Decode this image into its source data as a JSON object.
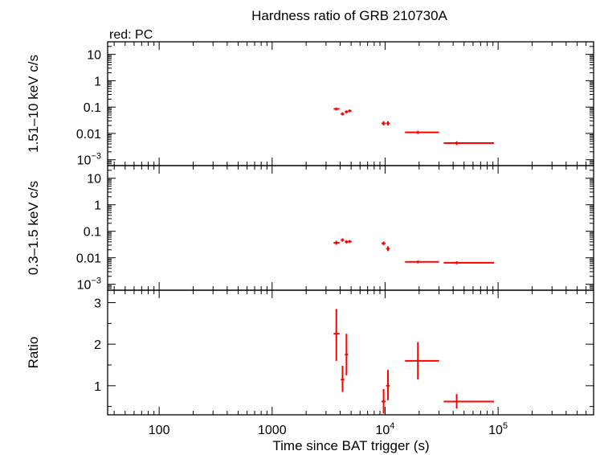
{
  "title": "Hardness ratio of GRB 210730A",
  "legend": "red: PC",
  "colors": {
    "data": "#ff0000",
    "axes": "#000000",
    "background": "#ffffff"
  },
  "chart_data": {
    "type": "scatter",
    "x_scale": "log",
    "xlim": [
      35,
      700000
    ],
    "xlabel": "Time since BAT trigger (s)",
    "x_ticks": [
      {
        "value": 100,
        "label": "100"
      },
      {
        "value": 1000,
        "label": "1000"
      },
      {
        "value": 10000,
        "base": "10",
        "exp": "4"
      },
      {
        "value": 100000,
        "base": "10",
        "exp": "5"
      }
    ],
    "panels": [
      {
        "ylabel": "1.51–10 keV c/s",
        "y_scale": "log",
        "ylim": [
          0.0006,
          30
        ],
        "y_ticks": [
          {
            "value": 10,
            "label": "10"
          },
          {
            "value": 1,
            "label": "1"
          },
          {
            "value": 0.1,
            "label": "0.1"
          },
          {
            "value": 0.01,
            "label": "0.01"
          },
          {
            "value": 0.001,
            "base": "10",
            "exp": "−3"
          }
        ],
        "points": [
          {
            "x": 3700,
            "xlo": 3500,
            "xhi": 3950,
            "y": 0.085,
            "ylo": 0.075,
            "yhi": 0.095
          },
          {
            "x": 4200,
            "xlo": 4050,
            "xhi": 4350,
            "y": 0.055,
            "ylo": 0.048,
            "yhi": 0.063
          },
          {
            "x": 4550,
            "xlo": 4400,
            "xhi": 4700,
            "y": 0.066,
            "ylo": 0.058,
            "yhi": 0.075
          },
          {
            "x": 4850,
            "xlo": 4700,
            "xhi": 5050,
            "y": 0.072,
            "ylo": 0.064,
            "yhi": 0.081
          },
          {
            "x": 9700,
            "xlo": 9300,
            "xhi": 10100,
            "y": 0.024,
            "ylo": 0.02,
            "yhi": 0.029
          },
          {
            "x": 10600,
            "xlo": 10200,
            "xhi": 11000,
            "y": 0.024,
            "ylo": 0.02,
            "yhi": 0.029
          },
          {
            "x": 19500,
            "xlo": 15000,
            "xhi": 30000,
            "y": 0.011,
            "ylo": 0.0095,
            "yhi": 0.0125
          },
          {
            "x": 43000,
            "xlo": 33000,
            "xhi": 92000,
            "y": 0.0043,
            "ylo": 0.0036,
            "yhi": 0.005
          }
        ]
      },
      {
        "ylabel": "0.3–1.5 keV c/s",
        "y_scale": "log",
        "ylim": [
          0.0006,
          30
        ],
        "y_ticks": [
          {
            "value": 10,
            "label": "10"
          },
          {
            "value": 1,
            "label": "1"
          },
          {
            "value": 0.1,
            "label": "0.1"
          },
          {
            "value": 0.01,
            "label": "0.01"
          },
          {
            "value": 0.001,
            "base": "10",
            "exp": "−3"
          }
        ],
        "points": [
          {
            "x": 3700,
            "xlo": 3500,
            "xhi": 3950,
            "y": 0.037,
            "ylo": 0.031,
            "yhi": 0.044
          },
          {
            "x": 4200,
            "xlo": 4050,
            "xhi": 4350,
            "y": 0.047,
            "ylo": 0.041,
            "yhi": 0.054
          },
          {
            "x": 4550,
            "xlo": 4400,
            "xhi": 4700,
            "y": 0.04,
            "ylo": 0.035,
            "yhi": 0.046
          },
          {
            "x": 4850,
            "xlo": 4700,
            "xhi": 5050,
            "y": 0.041,
            "ylo": 0.036,
            "yhi": 0.047
          },
          {
            "x": 9700,
            "xlo": 9300,
            "xhi": 10100,
            "y": 0.035,
            "ylo": 0.03,
            "yhi": 0.041
          },
          {
            "x": 10600,
            "xlo": 10200,
            "xhi": 11000,
            "y": 0.022,
            "ylo": 0.018,
            "yhi": 0.027
          },
          {
            "x": 19500,
            "xlo": 15000,
            "xhi": 30000,
            "y": 0.007,
            "ylo": 0.0062,
            "yhi": 0.0079
          },
          {
            "x": 43000,
            "xlo": 33000,
            "xhi": 92000,
            "y": 0.0065,
            "ylo": 0.0057,
            "yhi": 0.0074
          }
        ]
      },
      {
        "ylabel": "Ratio",
        "y_scale": "linear",
        "ylim": [
          0.3,
          3.3
        ],
        "y_ticks": [
          {
            "value": 1,
            "label": "1"
          },
          {
            "value": 2,
            "label": "2"
          },
          {
            "value": 3,
            "label": "3"
          }
        ],
        "points": [
          {
            "x": 3700,
            "xlo": 3500,
            "xhi": 3950,
            "y": 2.25,
            "ylo": 1.6,
            "yhi": 2.85
          },
          {
            "x": 4200,
            "xlo": 4050,
            "xhi": 4350,
            "y": 1.15,
            "ylo": 0.85,
            "yhi": 1.48
          },
          {
            "x": 4550,
            "xlo": 4400,
            "xhi": 4700,
            "y": 1.75,
            "ylo": 1.25,
            "yhi": 2.25
          },
          {
            "x": 9700,
            "xlo": 9300,
            "xhi": 10100,
            "y": 0.62,
            "ylo": 0.33,
            "yhi": 0.92
          },
          {
            "x": 10600,
            "xlo": 10200,
            "xhi": 11000,
            "y": 1.0,
            "ylo": 0.65,
            "yhi": 1.38
          },
          {
            "x": 19500,
            "xlo": 15000,
            "xhi": 30000,
            "y": 1.6,
            "ylo": 1.15,
            "yhi": 2.05
          },
          {
            "x": 43000,
            "xlo": 33000,
            "xhi": 92000,
            "y": 0.62,
            "ylo": 0.45,
            "yhi": 0.8
          }
        ]
      }
    ]
  }
}
